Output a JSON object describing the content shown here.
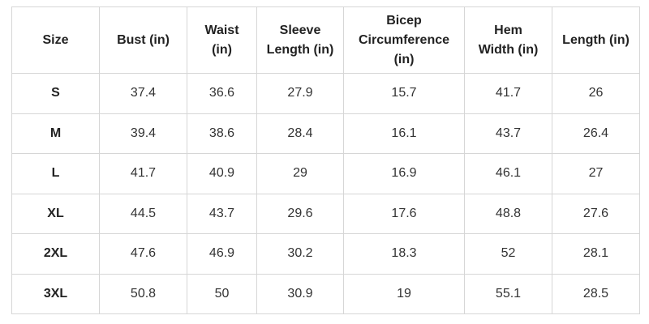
{
  "table": {
    "header": [
      "Size",
      "Bust (in)",
      "Waist (in)",
      "Sleeve Length (in)",
      "Bicep Circumference (in)",
      "Hem Width (in)",
      "Length (in)"
    ],
    "rows": [
      [
        "S",
        37.4,
        36.6,
        27.9,
        15.7,
        41.7,
        26
      ],
      [
        "M",
        39.4,
        38.6,
        28.4,
        16.1,
        43.7,
        26.4
      ],
      [
        "L",
        41.7,
        40.9,
        29,
        16.9,
        46.1,
        27
      ],
      [
        "XL",
        44.5,
        43.7,
        29.6,
        17.6,
        48.8,
        27.6
      ],
      [
        "2XL",
        47.6,
        46.9,
        30.2,
        18.3,
        52,
        28.1
      ],
      [
        "3XL",
        50.8,
        50,
        30.9,
        19,
        55.1,
        28.5
      ]
    ]
  }
}
